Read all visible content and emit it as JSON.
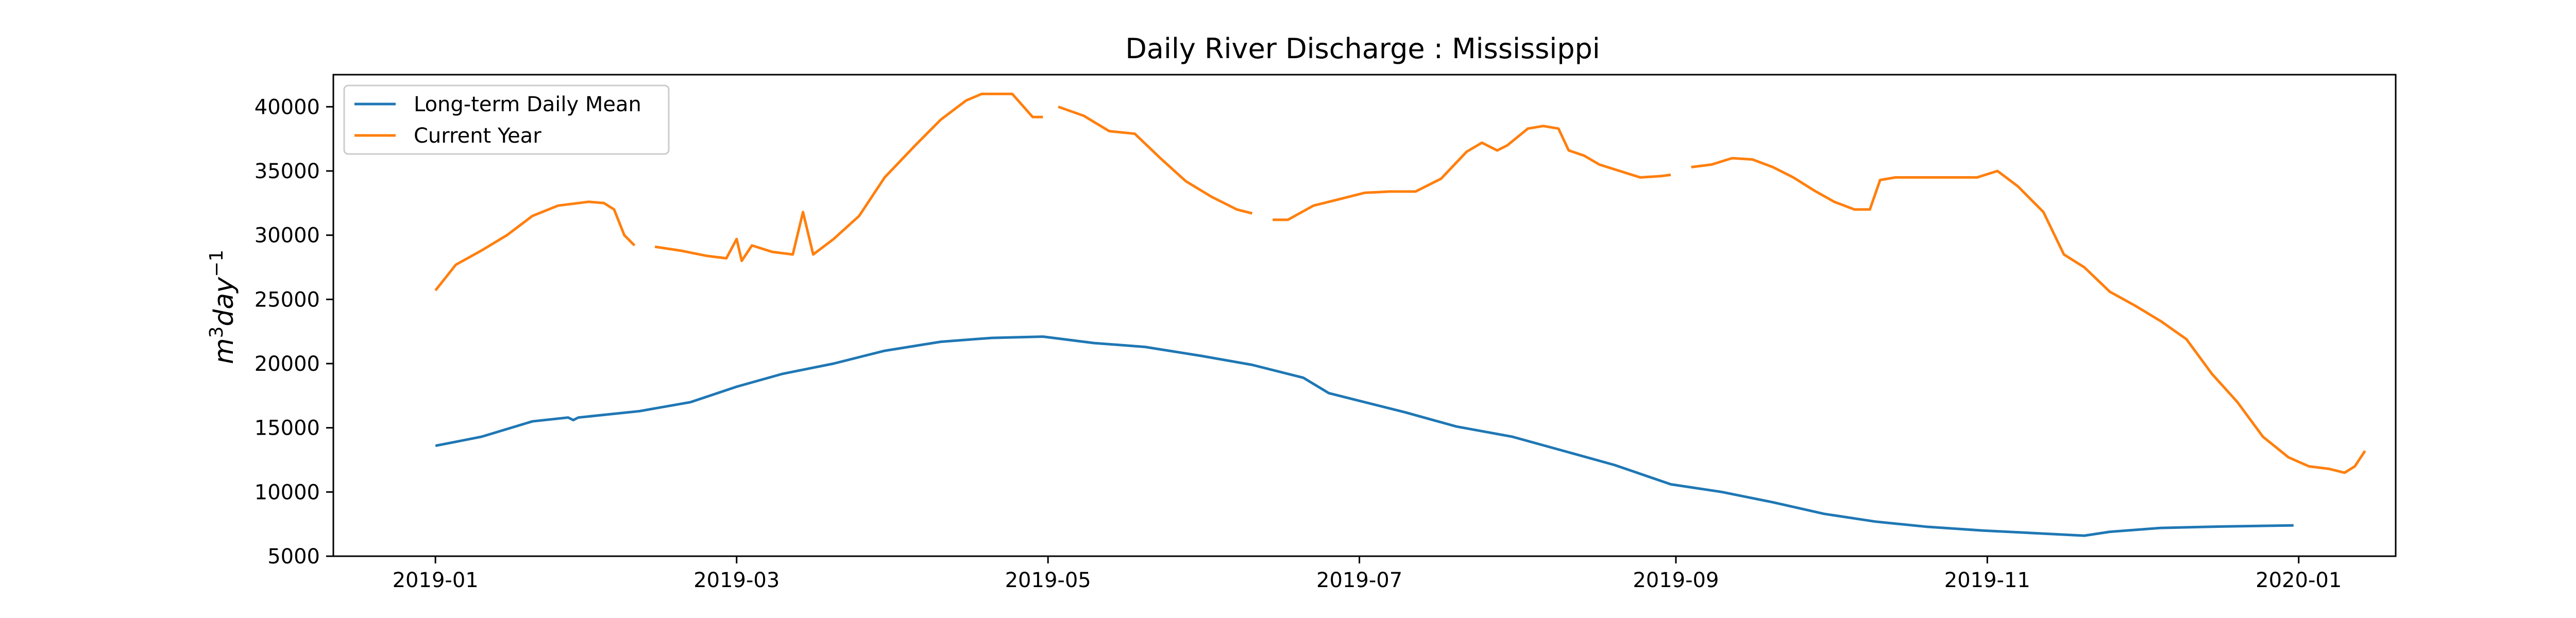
{
  "chart_data": {
    "type": "line",
    "title": "Daily River Discharge : Mississippi",
    "xlabel": "",
    "ylabel": "m3day-1",
    "ylabel_base": "m",
    "ylabel_sup1": "3",
    "ylabel_mid": "day",
    "ylabel_sup2": "−1",
    "xlim": [
      "2018-12-12",
      "2020-01-20"
    ],
    "ylim": [
      5000,
      42500
    ],
    "x_ticks": [
      "2019-01",
      "2019-03",
      "2019-05",
      "2019-07",
      "2019-09",
      "2019-11",
      "2020-01"
    ],
    "x_tick_dates": [
      "2019-01-01",
      "2019-03-01",
      "2019-05-01",
      "2019-07-01",
      "2019-09-01",
      "2019-11-01",
      "2020-01-01"
    ],
    "y_ticks": [
      5000,
      10000,
      15000,
      20000,
      25000,
      30000,
      35000,
      40000
    ],
    "grid": false,
    "legend_position": "top-left",
    "series": [
      {
        "name": "Long-term Daily Mean",
        "color": "#1f77b4",
        "segments": [
          [
            [
              "2019-01-01",
              13600
            ],
            [
              "2019-01-10",
              14300
            ],
            [
              "2019-01-20",
              15500
            ],
            [
              "2019-01-27",
              15800
            ],
            [
              "2019-01-28",
              15600
            ],
            [
              "2019-01-29",
              15800
            ],
            [
              "2019-02-10",
              16300
            ],
            [
              "2019-02-20",
              17000
            ],
            [
              "2019-03-01",
              18200
            ],
            [
              "2019-03-10",
              19200
            ],
            [
              "2019-03-20",
              20000
            ],
            [
              "2019-03-25",
              20500
            ],
            [
              "2019-03-30",
              21000
            ],
            [
              "2019-04-10",
              21700
            ],
            [
              "2019-04-20",
              22000
            ],
            [
              "2019-04-30",
              22100
            ],
            [
              "2019-05-10",
              21600
            ],
            [
              "2019-05-20",
              21300
            ],
            [
              "2019-05-31",
              20600
            ],
            [
              "2019-06-10",
              19900
            ],
            [
              "2019-06-20",
              18900
            ],
            [
              "2019-06-25",
              17700
            ],
            [
              "2019-06-30",
              17200
            ],
            [
              "2019-07-10",
              16200
            ],
            [
              "2019-07-20",
              15100
            ],
            [
              "2019-07-31",
              14300
            ],
            [
              "2019-08-10",
              13200
            ],
            [
              "2019-08-20",
              12100
            ],
            [
              "2019-08-31",
              10600
            ],
            [
              "2019-09-10",
              10000
            ],
            [
              "2019-09-20",
              9200
            ],
            [
              "2019-09-30",
              8300
            ],
            [
              "2019-10-10",
              7700
            ],
            [
              "2019-10-20",
              7300
            ],
            [
              "2019-10-31",
              7000
            ],
            [
              "2019-11-10",
              6800
            ],
            [
              "2019-11-20",
              6600
            ],
            [
              "2019-11-25",
              6900
            ],
            [
              "2019-12-05",
              7200
            ],
            [
              "2019-12-15",
              7300
            ],
            [
              "2019-12-31",
              7400
            ]
          ]
        ]
      },
      {
        "name": "Current Year",
        "color": "#ff7f0e",
        "segments": [
          [
            [
              "2019-01-01",
              25700
            ],
            [
              "2019-01-05",
              27700
            ],
            [
              "2019-01-10",
              28800
            ],
            [
              "2019-01-15",
              30000
            ],
            [
              "2019-01-20",
              31500
            ],
            [
              "2019-01-25",
              32300
            ],
            [
              "2019-01-31",
              32600
            ],
            [
              "2019-02-03",
              32500
            ],
            [
              "2019-02-05",
              32000
            ],
            [
              "2019-02-07",
              30000
            ],
            [
              "2019-02-09",
              29200
            ]
          ],
          [
            [
              "2019-02-13",
              29100
            ],
            [
              "2019-02-18",
              28800
            ],
            [
              "2019-02-23",
              28400
            ],
            [
              "2019-02-25",
              28300
            ],
            [
              "2019-02-27",
              28200
            ],
            [
              "2019-03-01",
              29700
            ],
            [
              "2019-03-02",
              28000
            ],
            [
              "2019-03-04",
              29200
            ],
            [
              "2019-03-08",
              28700
            ],
            [
              "2019-03-12",
              28500
            ],
            [
              "2019-03-14",
              31800
            ],
            [
              "2019-03-16",
              28500
            ],
            [
              "2019-03-20",
              29700
            ],
            [
              "2019-03-25",
              31500
            ],
            [
              "2019-03-30",
              34500
            ],
            [
              "2019-04-05",
              37000
            ],
            [
              "2019-04-10",
              39000
            ],
            [
              "2019-04-15",
              40500
            ],
            [
              "2019-04-18",
              41000
            ],
            [
              "2019-04-24",
              41000
            ],
            [
              "2019-04-28",
              39200
            ],
            [
              "2019-04-30",
              39200
            ]
          ],
          [
            [
              "2019-05-03",
              40000
            ],
            [
              "2019-05-08",
              39300
            ],
            [
              "2019-05-13",
              38100
            ],
            [
              "2019-05-18",
              37900
            ],
            [
              "2019-05-23",
              36000
            ],
            [
              "2019-05-28",
              34200
            ],
            [
              "2019-06-02",
              33000
            ],
            [
              "2019-06-07",
              32000
            ],
            [
              "2019-06-10",
              31700
            ]
          ],
          [
            [
              "2019-06-14",
              31200
            ],
            [
              "2019-06-17",
              31200
            ],
            [
              "2019-06-22",
              32300
            ],
            [
              "2019-06-27",
              32800
            ],
            [
              "2019-07-02",
              33300
            ],
            [
              "2019-07-07",
              33400
            ],
            [
              "2019-07-12",
              33400
            ],
            [
              "2019-07-17",
              34400
            ],
            [
              "2019-07-22",
              36500
            ],
            [
              "2019-07-25",
              37200
            ],
            [
              "2019-07-28",
              36600
            ],
            [
              "2019-07-30",
              37000
            ],
            [
              "2019-08-03",
              38300
            ],
            [
              "2019-08-06",
              38500
            ],
            [
              "2019-08-09",
              38300
            ],
            [
              "2019-08-11",
              36600
            ],
            [
              "2019-08-14",
              36200
            ],
            [
              "2019-08-17",
              35500
            ],
            [
              "2019-08-21",
              35000
            ],
            [
              "2019-08-25",
              34500
            ],
            [
              "2019-08-29",
              34600
            ],
            [
              "2019-08-31",
              34700
            ]
          ],
          [
            [
              "2019-09-04",
              35300
            ],
            [
              "2019-09-08",
              35500
            ],
            [
              "2019-09-12",
              36000
            ],
            [
              "2019-09-16",
              35900
            ],
            [
              "2019-09-20",
              35300
            ],
            [
              "2019-09-24",
              34500
            ],
            [
              "2019-09-28",
              33500
            ],
            [
              "2019-10-02",
              32600
            ],
            [
              "2019-10-06",
              32000
            ],
            [
              "2019-10-09",
              32000
            ],
            [
              "2019-10-11",
              34300
            ],
            [
              "2019-10-14",
              34500
            ],
            [
              "2019-10-20",
              34500
            ],
            [
              "2019-10-26",
              34500
            ],
            [
              "2019-10-30",
              34500
            ],
            [
              "2019-11-03",
              35000
            ],
            [
              "2019-11-07",
              33800
            ],
            [
              "2019-11-12",
              31800
            ],
            [
              "2019-11-16",
              28500
            ],
            [
              "2019-11-20",
              27500
            ],
            [
              "2019-11-25",
              25600
            ],
            [
              "2019-11-30",
              24500
            ],
            [
              "2019-12-05",
              23300
            ],
            [
              "2019-12-10",
              21900
            ],
            [
              "2019-12-15",
              19200
            ],
            [
              "2019-12-20",
              17000
            ],
            [
              "2019-12-25",
              14300
            ],
            [
              "2019-12-30",
              12700
            ],
            [
              "2020-01-03",
              12000
            ],
            [
              "2020-01-07",
              11800
            ],
            [
              "2020-01-10",
              11500
            ],
            [
              "2020-01-12",
              12000
            ],
            [
              "2020-01-14",
              13200
            ]
          ]
        ]
      }
    ]
  }
}
